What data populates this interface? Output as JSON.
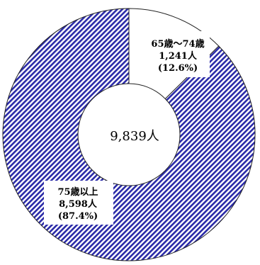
{
  "chart_data": {
    "type": "pie",
    "variant": "donut",
    "total_label": "9,839人",
    "slices": [
      {
        "name": "65歳～74歳",
        "count_label": "1,241人",
        "percent_label": "(12.6%)",
        "value": 1241,
        "percent": 12.6,
        "fill": "white"
      },
      {
        "name": "75歳以上",
        "count_label": "8,598人",
        "percent_label": "(87.4%)",
        "value": 8598,
        "percent": 87.4,
        "fill": "blue-diagonal-hatch"
      }
    ],
    "colors": {
      "hatch": "#2a2aa8",
      "background": "#ffffff",
      "outline": "#222222"
    }
  }
}
